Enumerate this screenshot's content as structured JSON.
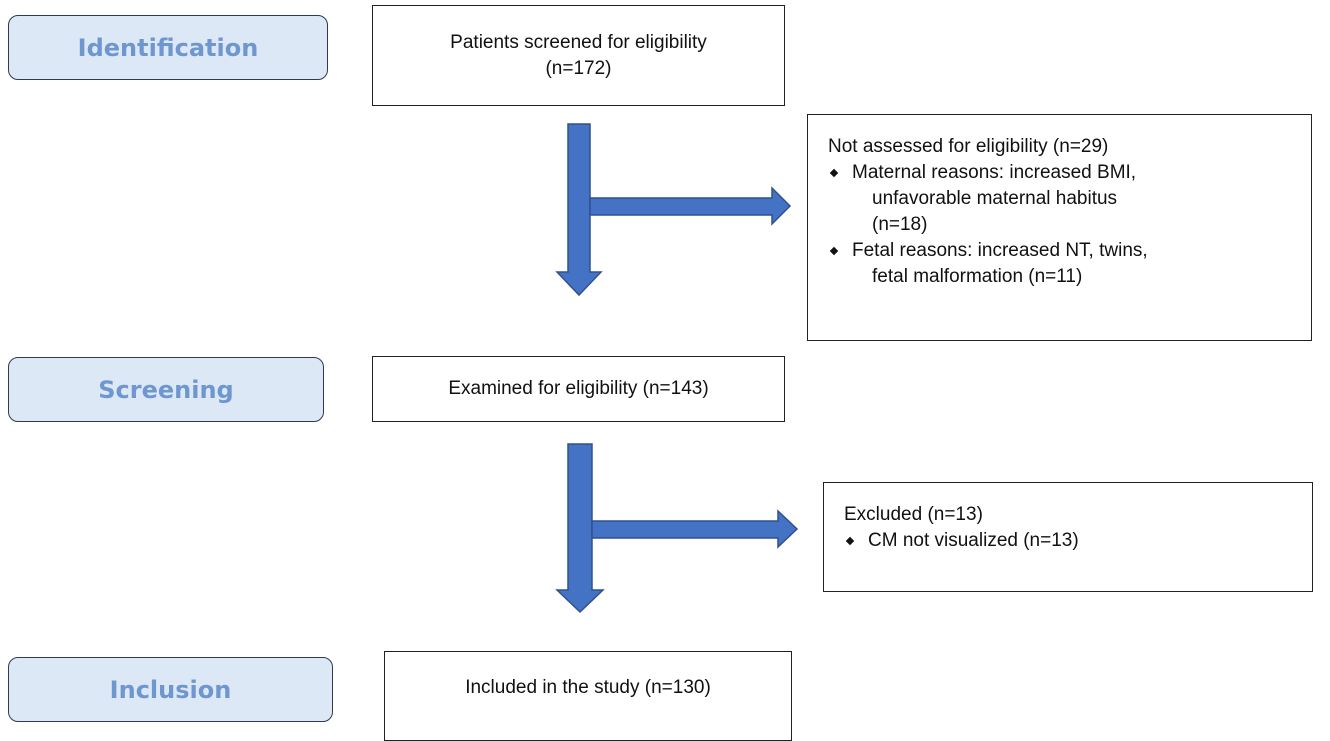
{
  "stages": [
    "Identification",
    "Screening",
    "Inclusion"
  ],
  "boxes": [
    {
      "lines": [
        "Patients screened for eligibility",
        "(n=172)"
      ]
    },
    {
      "lines": [
        "Examined for eligibility (n=143)"
      ]
    },
    {
      "lines": [
        "Included in the study (n=130)"
      ]
    }
  ],
  "side_boxes": [
    {
      "heading": "Not assessed for eligibility (n=29)",
      "bullets": [
        [
          "Maternal reasons: increased BMI,",
          "unfavorable maternal habitus",
          "(n=18)"
        ],
        [
          "Fetal reasons: increased NT, twins,",
          "fetal malformation (n=11)"
        ]
      ]
    },
    {
      "heading": "Excluded (n=13)",
      "bullets": [
        [
          "CM not visualized (n=13)"
        ]
      ]
    }
  ]
}
